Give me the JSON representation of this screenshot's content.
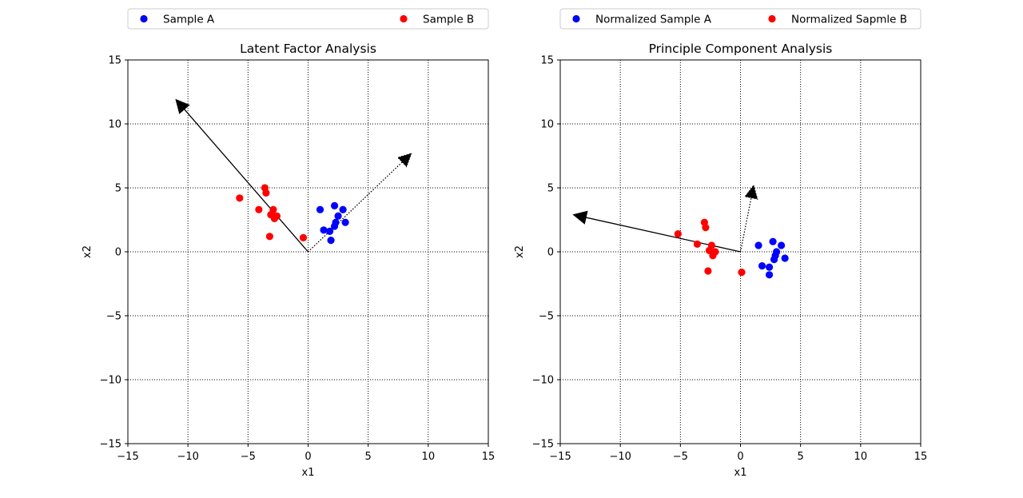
{
  "chart_data": [
    {
      "type": "scatter",
      "title": "Latent Factor Analysis",
      "xlabel": "x1",
      "ylabel": "x2",
      "xlim": [
        -15,
        15
      ],
      "ylim": [
        -15,
        15
      ],
      "xticks": [
        -15,
        -10,
        -5,
        0,
        5,
        10,
        15
      ],
      "yticks": [
        -15,
        -10,
        -5,
        0,
        5,
        10,
        15
      ],
      "grid": true,
      "grid_style": "dotted",
      "legend_position": "top, above plot",
      "series": [
        {
          "name": "Sample A",
          "color": "#0000ff",
          "points": [
            [
              1.0,
              3.3
            ],
            [
              2.2,
              3.6
            ],
            [
              2.9,
              3.3
            ],
            [
              2.5,
              2.8
            ],
            [
              2.3,
              2.3
            ],
            [
              2.2,
              2.0
            ],
            [
              3.1,
              2.3
            ],
            [
              1.3,
              1.7
            ],
            [
              1.8,
              1.6
            ],
            [
              1.9,
              0.9
            ]
          ]
        },
        {
          "name": "Sample B",
          "color": "#ff0000",
          "points": [
            [
              -5.7,
              4.2
            ],
            [
              -3.6,
              5.0
            ],
            [
              -3.5,
              4.6
            ],
            [
              -4.1,
              3.3
            ],
            [
              -2.9,
              3.3
            ],
            [
              -3.1,
              2.9
            ],
            [
              -2.6,
              2.8
            ],
            [
              -2.8,
              2.6
            ],
            [
              -3.2,
              1.2
            ],
            [
              -0.4,
              1.1
            ]
          ]
        }
      ],
      "arrows": [
        {
          "from": [
            0,
            0
          ],
          "to": [
            -11.0,
            11.9
          ],
          "style": "solid"
        },
        {
          "from": [
            0,
            0
          ],
          "to": [
            8.6,
            7.7
          ],
          "style": "dotted"
        }
      ]
    },
    {
      "type": "scatter",
      "title": "Principle Component Analysis",
      "xlabel": "x1",
      "ylabel": "x2",
      "xlim": [
        -15,
        15
      ],
      "ylim": [
        -15,
        15
      ],
      "xticks": [
        -15,
        -10,
        -5,
        0,
        5,
        10,
        15
      ],
      "yticks": [
        -15,
        -10,
        -5,
        0,
        5,
        10,
        15
      ],
      "grid": true,
      "grid_style": "dotted",
      "legend_position": "top, above plot",
      "series": [
        {
          "name": "Normalized Sample A",
          "color": "#0000ff",
          "points": [
            [
              1.5,
              0.5
            ],
            [
              2.7,
              0.8
            ],
            [
              3.4,
              0.5
            ],
            [
              3.0,
              0.0
            ],
            [
              2.9,
              -0.3
            ],
            [
              2.8,
              -0.6
            ],
            [
              3.7,
              -0.5
            ],
            [
              1.8,
              -1.1
            ],
            [
              2.4,
              -1.2
            ],
            [
              2.4,
              -1.8
            ]
          ]
        },
        {
          "name": "Normalized Sapmle B",
          "color": "#ff0000",
          "points": [
            [
              -5.2,
              1.4
            ],
            [
              -3.0,
              2.3
            ],
            [
              -2.9,
              1.9
            ],
            [
              -3.6,
              0.6
            ],
            [
              -2.4,
              0.5
            ],
            [
              -2.6,
              0.1
            ],
            [
              -2.1,
              0.0
            ],
            [
              -2.3,
              -0.3
            ],
            [
              -2.7,
              -1.5
            ],
            [
              0.1,
              -1.6
            ]
          ]
        }
      ],
      "arrows": [
        {
          "from": [
            0,
            0
          ],
          "to": [
            -13.9,
            2.9
          ],
          "style": "solid"
        },
        {
          "from": [
            0,
            0
          ],
          "to": [
            1.1,
            5.2
          ],
          "style": "dotted"
        }
      ]
    }
  ]
}
